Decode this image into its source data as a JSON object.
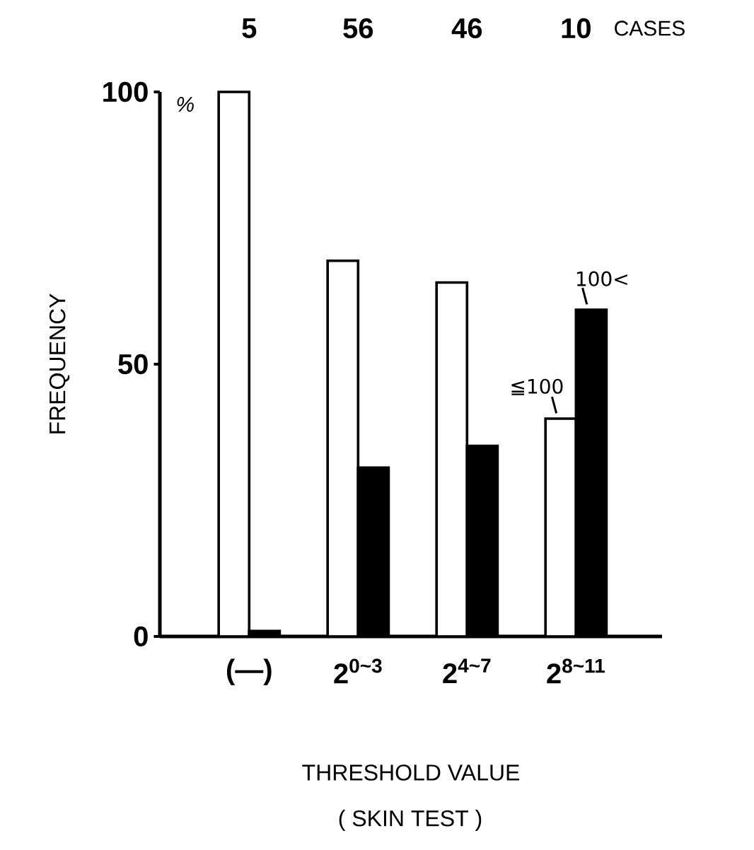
{
  "chart_data": {
    "type": "bar",
    "xlabel": "THRESHOLD VALUE",
    "ylabel": "FREQUENCY",
    "categories": [
      "(—)",
      "2$^{0~3}$",
      "2$^{4~7}$",
      "2$^{8~11}$"
    ],
    "series": [
      {
        "name": "≦100",
        "color": "#ffffff",
        "values": [
          100,
          69,
          65,
          40
        ]
      },
      {
        "name": "100<",
        "color": "#000000",
        "values": [
          1,
          31,
          35,
          60
        ]
      }
    ],
    "ylim": [
      0,
      100
    ],
    "yticks": [
      0,
      50,
      100
    ],
    "annotations": [
      "5",
      "56",
      "46",
      "10",
      "CASES",
      "%",
      "( SKIN TEST )"
    ]
  }
}
